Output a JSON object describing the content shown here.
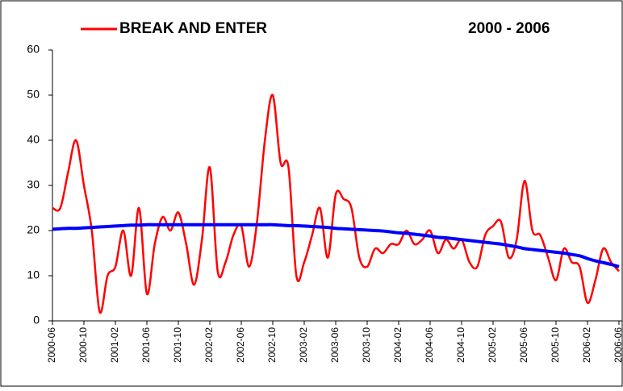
{
  "chart_data": {
    "type": "line",
    "title": "2000 - 2006",
    "categories": [
      "2000-06",
      null,
      null,
      null,
      "2000-10",
      null,
      null,
      null,
      "2001-02",
      null,
      null,
      null,
      "2001-06",
      null,
      null,
      null,
      "2001-10",
      null,
      null,
      null,
      "2002-02",
      null,
      null,
      null,
      "2002-06",
      null,
      null,
      null,
      "2002-10",
      null,
      null,
      null,
      "2003-02",
      null,
      null,
      null,
      "2003-06",
      null,
      null,
      null,
      "2003-10",
      null,
      null,
      null,
      "2004-02",
      null,
      null,
      null,
      "2004-06",
      null,
      null,
      null,
      "2004-10",
      null,
      null,
      null,
      "2005-02",
      null,
      null,
      null,
      "2005-06",
      null,
      null,
      null,
      "2005-10",
      null,
      null,
      null,
      "2006-02",
      null,
      null,
      null,
      "2006-06"
    ],
    "series": [
      {
        "name": "BREAK AND ENTER",
        "color": "#ff0000",
        "values": [
          25,
          25,
          33,
          40,
          30,
          20,
          2,
          10,
          12,
          20,
          10,
          25,
          6,
          17,
          23,
          20,
          24,
          17,
          8,
          18,
          34,
          11,
          13,
          19,
          21,
          12,
          22,
          40,
          50,
          35,
          34,
          10,
          13,
          19,
          25,
          14,
          28,
          27,
          25,
          14,
          12,
          16,
          15,
          17,
          17,
          20,
          17,
          18,
          20,
          15,
          18,
          16,
          18,
          13,
          12,
          19,
          21,
          22,
          14,
          18,
          31,
          20,
          19,
          14,
          9,
          16,
          13,
          12,
          4,
          9,
          16,
          13,
          11
        ]
      },
      {
        "color": "#0000ff",
        "values": [
          20.3,
          20.4,
          20.5,
          20.5,
          20.6,
          20.7,
          20.8,
          20.9,
          21,
          21.1,
          21.2,
          21.2,
          21.3,
          21.3,
          21.3,
          21.3,
          21.3,
          21.3,
          21.3,
          21.3,
          21.3,
          21.3,
          21.3,
          21.3,
          21.3,
          21.3,
          21.3,
          21.3,
          21.3,
          21.2,
          21.1,
          21.1,
          21,
          20.9,
          20.8,
          20.7,
          20.5,
          20.4,
          20.3,
          20.2,
          20.1,
          20,
          19.9,
          19.7,
          19.5,
          19.4,
          19.2,
          19,
          18.8,
          18.5,
          18.4,
          18.2,
          18,
          17.8,
          17.6,
          17.4,
          17.2,
          17,
          16.7,
          16.4,
          16,
          15.8,
          15.6,
          15.4,
          15.2,
          15,
          14.7,
          14.4,
          13.8,
          13.3,
          12.9,
          12.5,
          12
        ]
      }
    ],
    "ylim": [
      0,
      60
    ],
    "yticks": [
      0,
      10,
      20,
      30,
      40,
      50,
      60
    ],
    "grid": false
  }
}
